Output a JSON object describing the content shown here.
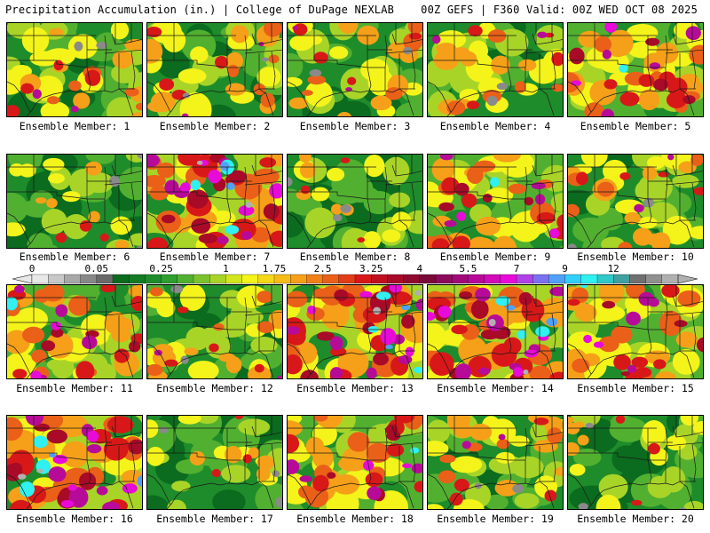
{
  "header": {
    "left": "Precipitation Accumulation (in.) | College of DuPage NEXLAB",
    "right": "00Z GEFS | F360 Valid: 00Z WED OCT 08 2025"
  },
  "members": [
    {
      "caption": "Ensemble Member: 1",
      "character": "mod",
      "seed": 1
    },
    {
      "caption": "Ensemble Member: 2",
      "character": "mod",
      "seed": 2
    },
    {
      "caption": "Ensemble Member: 3",
      "character": "mod",
      "seed": 3
    },
    {
      "caption": "Ensemble Member: 4",
      "character": "mod",
      "seed": 4
    },
    {
      "caption": "Ensemble Member: 5",
      "character": "wet",
      "seed": 5
    },
    {
      "caption": "Ensemble Member: 6",
      "character": "dry",
      "seed": 6
    },
    {
      "caption": "Ensemble Member: 7",
      "character": "vwet",
      "seed": 7
    },
    {
      "caption": "Ensemble Member: 8",
      "character": "dry",
      "seed": 8
    },
    {
      "caption": "Ensemble Member: 9",
      "character": "wet",
      "seed": 9
    },
    {
      "caption": "Ensemble Member: 10",
      "character": "mod",
      "seed": 10
    },
    {
      "caption": "Ensemble Member: 11",
      "character": "wet",
      "seed": 11
    },
    {
      "caption": "Ensemble Member: 12",
      "character": "mod",
      "seed": 12
    },
    {
      "caption": "Ensemble Member: 13",
      "character": "vwet",
      "seed": 13
    },
    {
      "caption": "Ensemble Member: 14",
      "character": "vwet",
      "seed": 14
    },
    {
      "caption": "Ensemble Member: 15",
      "character": "wet",
      "seed": 15
    },
    {
      "caption": "Ensemble Member: 16",
      "character": "vwet",
      "seed": 16
    },
    {
      "caption": "Ensemble Member: 17",
      "character": "dry",
      "seed": 17
    },
    {
      "caption": "Ensemble Member: 18",
      "character": "wet",
      "seed": 18
    },
    {
      "caption": "Ensemble Member: 19",
      "character": "mod",
      "seed": 19
    },
    {
      "caption": "Ensemble Member: 20",
      "character": "dry",
      "seed": 20
    }
  ],
  "colorbar": {
    "labels": [
      {
        "text": "0",
        "bin": 0
      },
      {
        "text": "0.05",
        "bin": 4
      },
      {
        "text": "0.25",
        "bin": 8
      },
      {
        "text": "1",
        "bin": 12
      },
      {
        "text": "1.75",
        "bin": 15
      },
      {
        "text": "2.5",
        "bin": 18
      },
      {
        "text": "3.25",
        "bin": 21
      },
      {
        "text": "4",
        "bin": 24
      },
      {
        "text": "5.5",
        "bin": 27
      },
      {
        "text": "7",
        "bin": 30
      },
      {
        "text": "9",
        "bin": 33
      },
      {
        "text": "12",
        "bin": 36
      }
    ],
    "colors": [
      "#e8e8e8",
      "#c8c8c8",
      "#a8a8a8",
      "#888888",
      "#6a6a6a",
      "#0b6b1e",
      "#147a24",
      "#1e8c2a",
      "#2e9e2e",
      "#52b030",
      "#7cc22e",
      "#a8d428",
      "#d2e61e",
      "#f4f41a",
      "#f5d818",
      "#f5bc18",
      "#f5a018",
      "#f08018",
      "#ea6018",
      "#e23c18",
      "#d81818",
      "#c01020",
      "#a80a28",
      "#900a30",
      "#7a0a38",
      "#8c0a5a",
      "#a00a78",
      "#b80a98",
      "#d20ab8",
      "#e80ad8",
      "#b040e8",
      "#7a70f0",
      "#50a0f8",
      "#30d0fa",
      "#30f0f0",
      "#30c8c8",
      "#40a0a0",
      "#707070",
      "#909090",
      "#b0b0b0"
    ]
  }
}
